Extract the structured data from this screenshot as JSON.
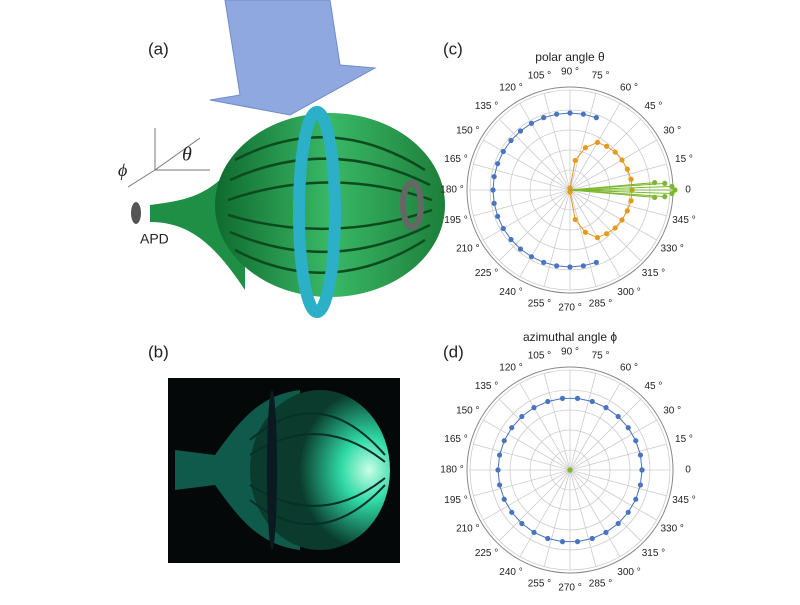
{
  "panels": {
    "a": "(a)",
    "b": "(b)",
    "c": "(c)",
    "d": "(d)"
  },
  "diagram": {
    "detector": "APD",
    "theta": "θ",
    "phi": "ϕ"
  },
  "chart_data": [
    {
      "type": "polar",
      "title": "polar angle θ",
      "rlim": [
        0,
        1
      ],
      "rgrid": [
        0.2,
        0.4,
        0.6,
        0.8,
        1
      ],
      "thetaticks": [
        0,
        {
          "value": 15,
          "label": "15 °"
        },
        {
          "value": 30,
          "label": "30 °"
        },
        {
          "value": 45,
          "label": "45 °"
        },
        {
          "value": 60,
          "label": "60 °"
        },
        {
          "value": 75,
          "label": "75 °"
        },
        {
          "value": 90,
          "label": "90 °"
        },
        {
          "value": 105,
          "label": "105 °"
        },
        {
          "value": 120,
          "label": "120 °"
        },
        {
          "value": 135,
          "label": "135 °"
        },
        {
          "value": 150,
          "label": "150 °"
        },
        {
          "value": 165,
          "label": "165 °"
        },
        {
          "value": 180,
          "label": "180 °"
        },
        {
          "value": 195,
          "label": "195 °"
        },
        {
          "value": 210,
          "label": "210 °"
        },
        {
          "value": 225,
          "label": "225 °"
        },
        {
          "value": 240,
          "label": "240 °"
        },
        {
          "value": 255,
          "label": "255 °"
        },
        {
          "value": 270,
          "label": "270 °"
        },
        {
          "value": 285,
          "label": "285 °"
        },
        {
          "value": 300,
          "label": "300 °"
        },
        {
          "value": 315,
          "label": "315 °"
        },
        {
          "value": 330,
          "label": "330 °"
        },
        {
          "value": 345,
          "label": "345 °"
        }
      ],
      "series": [
        {
          "color": "#4a74c0",
          "stems": false,
          "theta": [
            70,
            80,
            90,
            100,
            110,
            120,
            130,
            140,
            150,
            160,
            170,
            180,
            190,
            200,
            210,
            220,
            230,
            240,
            250,
            260,
            270,
            280,
            290
          ],
          "r": [
            0.77,
            0.77,
            0.77,
            0.77,
            0.77,
            0.77,
            0.77,
            0.77,
            0.77,
            0.77,
            0.77,
            0.77,
            0.77,
            0.77,
            0.77,
            0.77,
            0.77,
            0.77,
            0.77,
            0.77,
            0.77,
            0.77,
            0.77
          ]
        },
        {
          "color": "#e69a1c",
          "stems": false,
          "theta": [
            90,
            80,
            70,
            60,
            50,
            40,
            30,
            20,
            10,
            0,
            -10,
            -20,
            -30,
            -40,
            -50,
            -60,
            -70,
            -80,
            -90
          ],
          "r": [
            0.02,
            0.3,
            0.45,
            0.55,
            0.57,
            0.59,
            0.6,
            0.61,
            0.62,
            0.62,
            0.62,
            0.61,
            0.6,
            0.59,
            0.57,
            0.55,
            0.45,
            0.3,
            0.02
          ]
        },
        {
          "color": "#7cb82f",
          "stems": true,
          "theta": [
            5,
            4,
            2,
            0,
            -2,
            -4,
            -5
          ],
          "r": [
            0.85,
            0.95,
            1.02,
            1.05,
            1.02,
            0.95,
            0.85
          ]
        }
      ]
    },
    {
      "type": "polar",
      "title": "azimuthal angle ϕ",
      "rlim": [
        0,
        1
      ],
      "rgrid": [
        0.2,
        0.4,
        0.6,
        0.8,
        1
      ],
      "thetaticks": [
        0,
        {
          "value": 15,
          "label": "15 °"
        },
        {
          "value": 30,
          "label": "30 °"
        },
        {
          "value": 45,
          "label": "45 °"
        },
        {
          "value": 60,
          "label": "60 °"
        },
        {
          "value": 75,
          "label": "75 °"
        },
        {
          "value": 90,
          "label": "90 °"
        },
        {
          "value": 105,
          "label": "105 °"
        },
        {
          "value": 120,
          "label": "120 °"
        },
        {
          "value": 135,
          "label": "135 °"
        },
        {
          "value": 150,
          "label": "150 °"
        },
        {
          "value": 165,
          "label": "165 °"
        },
        {
          "value": 180,
          "label": "180 °"
        },
        {
          "value": 195,
          "label": "195 °"
        },
        {
          "value": 210,
          "label": "210 °"
        },
        {
          "value": 225,
          "label": "225 °"
        },
        {
          "value": 240,
          "label": "240 °"
        },
        {
          "value": 255,
          "label": "255 °"
        },
        {
          "value": 270,
          "label": "270 °"
        },
        {
          "value": 285,
          "label": "285 °"
        },
        {
          "value": 300,
          "label": "300 °"
        },
        {
          "value": 315,
          "label": "315 °"
        },
        {
          "value": 330,
          "label": "330 °"
        },
        {
          "value": 345,
          "label": "345 °"
        }
      ],
      "series": [
        {
          "color": "#4a74c0",
          "stems": false,
          "theta": [
            0,
            12,
            24,
            36,
            48,
            60,
            72,
            84,
            96,
            108,
            120,
            132,
            144,
            156,
            168,
            180,
            192,
            204,
            216,
            228,
            240,
            252,
            264,
            276,
            288,
            300,
            312,
            324,
            336,
            348,
            360
          ],
          "r": [
            0.72,
            0.72,
            0.72,
            0.72,
            0.72,
            0.72,
            0.72,
            0.72,
            0.72,
            0.72,
            0.72,
            0.72,
            0.72,
            0.72,
            0.72,
            0.72,
            0.72,
            0.72,
            0.72,
            0.72,
            0.72,
            0.72,
            0.72,
            0.72,
            0.72,
            0.72,
            0.72,
            0.72,
            0.72,
            0.72,
            0.72
          ]
        },
        {
          "color": "#7cb82f",
          "stems": false,
          "theta": [
            0
          ],
          "r": [
            0
          ]
        }
      ]
    }
  ]
}
